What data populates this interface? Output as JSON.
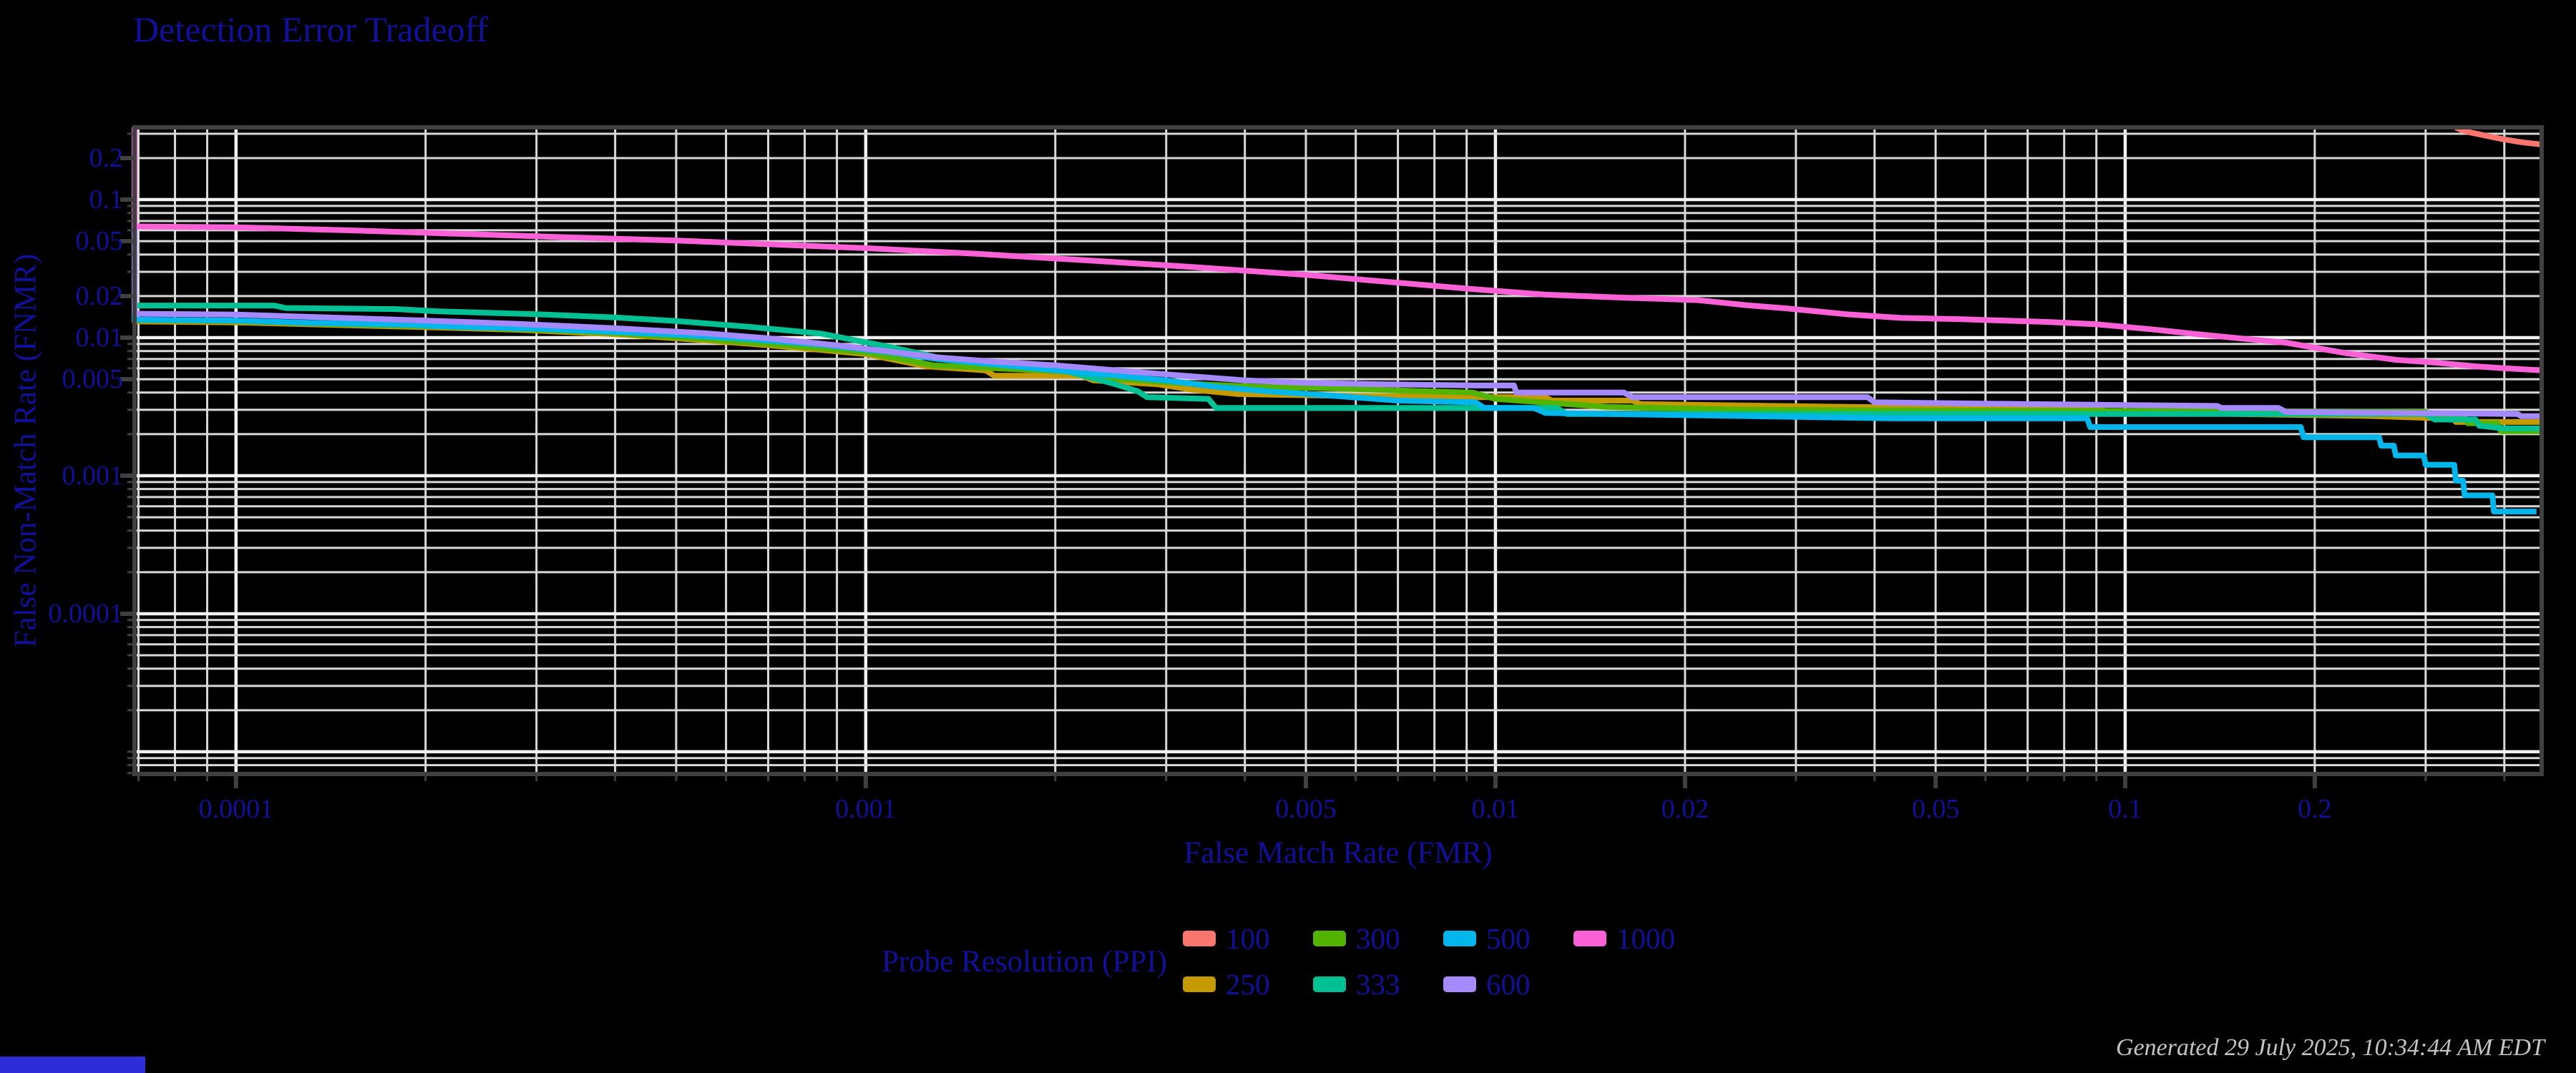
{
  "title": "Detection Error Tradeoff",
  "colors": {
    "background": "#000000",
    "text_navy": "#10109a",
    "grid_minor": "#d9d9d9",
    "grid_major": "#f2f2f2",
    "frame": "#404040",
    "timestamp_gray": "#c4c4c4",
    "bottom_bar_blue": "#2d2dda"
  },
  "axes": {
    "x_label": "False Match Rate (FMR)",
    "y_label": "False Non-Match Rate (FNMR)"
  },
  "legend": {
    "title": "Probe Resolution (PPI)",
    "items": [
      {
        "label": "100",
        "color": "#F8766D"
      },
      {
        "label": "250",
        "color": "#C49A00"
      },
      {
        "label": "300",
        "color": "#53B400"
      },
      {
        "label": "333",
        "color": "#00C094"
      },
      {
        "label": "500",
        "color": "#00B6EB"
      },
      {
        "label": "600",
        "color": "#A58AFF"
      },
      {
        "label": "1000",
        "color": "#FB61D7"
      }
    ]
  },
  "footer": {
    "generated": "Generated 29 July 2025, 10:34:44 AM EDT"
  },
  "chart_data": {
    "type": "line",
    "title": "Detection Error Tradeoff",
    "xlabel": "False Match Rate (FMR)",
    "ylabel": "False Non-Match Rate (FNMR)",
    "x_scale": "log",
    "y_scale": "log",
    "xlim": [
      6.9e-05,
      0.4585
    ],
    "ylim": [
      6.9e-06,
      0.334
    ],
    "grid": true,
    "legend_position": "bottom",
    "x_tick_values": [
      0.0001,
      0.001,
      0.005,
      0.01,
      0.02,
      0.05,
      0.1,
      0.2
    ],
    "x_tick_labels": [
      "0.0001",
      "0.001",
      "0.005",
      "0.01",
      "0.02",
      "0.05",
      "0.1",
      "0.2"
    ],
    "y_tick_values": [
      0.2,
      0.1,
      0.05,
      0.02,
      0.01,
      0.005,
      0.001,
      0.0001
    ],
    "y_tick_labels": [
      "0.2",
      "0.1",
      "0.05",
      "0.02",
      "0.01",
      "0.005",
      "0.001",
      "0.0001"
    ],
    "series": [
      {
        "name": "100",
        "color": "#F8766D",
        "points": [
          [
            0.335,
            0.333
          ],
          [
            0.345,
            0.315
          ],
          [
            0.355,
            0.305
          ],
          [
            0.368,
            0.295
          ],
          [
            0.38,
            0.286
          ],
          [
            0.395,
            0.276
          ],
          [
            0.41,
            0.268
          ],
          [
            0.425,
            0.261
          ],
          [
            0.44,
            0.256
          ],
          [
            0.4585,
            0.251
          ]
        ]
      },
      {
        "name": "250",
        "color": "#C49A00",
        "points": [
          [
            6.9e-05,
            0.333
          ],
          [
            6.9e-05,
            0.0131
          ],
          [
            0.0001,
            0.0129
          ],
          [
            0.00014,
            0.0124
          ],
          [
            0.0002,
            0.0119
          ],
          [
            0.00028,
            0.0114
          ],
          [
            0.0004,
            0.0106
          ],
          [
            0.00055,
            0.0096
          ],
          [
            0.00075,
            0.0086
          ],
          [
            0.001,
            0.0076
          ],
          [
            0.00125,
            0.0062
          ],
          [
            0.00155,
            0.0058
          ],
          [
            0.0016,
            0.0053
          ],
          [
            0.0022,
            0.0053
          ],
          [
            0.0023,
            0.0049
          ],
          [
            0.0029,
            0.0046
          ],
          [
            0.0033,
            0.0042
          ],
          [
            0.0039,
            0.0039
          ],
          [
            0.0055,
            0.0038
          ],
          [
            0.009,
            0.0037
          ],
          [
            0.012,
            0.0037
          ],
          [
            0.0123,
            0.0035
          ],
          [
            0.0165,
            0.0035
          ],
          [
            0.017,
            0.0033
          ],
          [
            0.028,
            0.0032
          ],
          [
            0.065,
            0.00305
          ],
          [
            0.089,
            0.00305
          ],
          [
            0.095,
            0.0029
          ],
          [
            0.15,
            0.0028
          ],
          [
            0.25,
            0.0027
          ],
          [
            0.32,
            0.0026
          ],
          [
            0.332,
            0.0026
          ],
          [
            0.335,
            0.00245
          ],
          [
            0.4585,
            0.00245
          ]
        ]
      },
      {
        "name": "300",
        "color": "#53B400",
        "points": [
          [
            6.9e-05,
            0.333
          ],
          [
            6.9e-05,
            0.0134
          ],
          [
            0.0001,
            0.0132
          ],
          [
            0.00014,
            0.0126
          ],
          [
            0.0002,
            0.0121
          ],
          [
            0.00028,
            0.0116
          ],
          [
            0.0004,
            0.0108
          ],
          [
            0.00055,
            0.0098
          ],
          [
            0.00075,
            0.0088
          ],
          [
            0.001,
            0.0078
          ],
          [
            0.00128,
            0.0063
          ],
          [
            0.0016,
            0.006
          ],
          [
            0.0022,
            0.0056
          ],
          [
            0.0024,
            0.0051
          ],
          [
            0.0029,
            0.0048
          ],
          [
            0.0034,
            0.0046
          ],
          [
            0.0042,
            0.0044
          ],
          [
            0.0055,
            0.0043
          ],
          [
            0.0075,
            0.0041
          ],
          [
            0.0092,
            0.004
          ],
          [
            0.01,
            0.0036
          ],
          [
            0.013,
            0.0033
          ],
          [
            0.015,
            0.00315
          ],
          [
            0.025,
            0.003
          ],
          [
            0.3,
            0.0029
          ],
          [
            0.31,
            0.0027
          ],
          [
            0.345,
            0.0027
          ],
          [
            0.35,
            0.0024
          ],
          [
            0.39,
            0.0024
          ],
          [
            0.395,
            0.0021
          ],
          [
            0.4585,
            0.0021
          ]
        ]
      },
      {
        "name": "333",
        "color": "#00C094",
        "points": [
          [
            6.9e-05,
            0.333
          ],
          [
            6.9e-05,
            0.0171
          ],
          [
            0.000115,
            0.0171
          ],
          [
            0.00012,
            0.0164
          ],
          [
            0.00018,
            0.0161
          ],
          [
            0.00021,
            0.0155
          ],
          [
            0.0003,
            0.0148
          ],
          [
            0.0004,
            0.014
          ],
          [
            0.0005,
            0.0132
          ],
          [
            0.00065,
            0.012
          ],
          [
            0.00085,
            0.0107
          ],
          [
            0.0011,
            0.0085
          ],
          [
            0.0013,
            0.0072
          ],
          [
            0.0016,
            0.0066
          ],
          [
            0.002,
            0.006
          ],
          [
            0.00245,
            0.0047
          ],
          [
            0.0027,
            0.0041
          ],
          [
            0.0028,
            0.0037
          ],
          [
            0.0035,
            0.0036
          ],
          [
            0.0036,
            0.0031
          ],
          [
            0.0125,
            0.0031
          ],
          [
            0.013,
            0.0028
          ],
          [
            0.3,
            0.0028
          ],
          [
            0.31,
            0.00255
          ],
          [
            0.36,
            0.00255
          ],
          [
            0.365,
            0.0023
          ],
          [
            0.4,
            0.0022
          ],
          [
            0.4585,
            0.0022
          ]
        ]
      },
      {
        "name": "500",
        "color": "#00B6EB",
        "points": [
          [
            6.9e-05,
            0.333
          ],
          [
            6.9e-05,
            0.0135
          ],
          [
            0.0001,
            0.0133
          ],
          [
            0.00013,
            0.0128
          ],
          [
            0.00019,
            0.0124
          ],
          [
            0.00021,
            0.0121
          ],
          [
            0.0003,
            0.0116
          ],
          [
            0.0004,
            0.011
          ],
          [
            0.0005,
            0.0105
          ],
          [
            0.00065,
            0.0098
          ],
          [
            0.00085,
            0.0089
          ],
          [
            0.0011,
            0.0078
          ],
          [
            0.0013,
            0.007
          ],
          [
            0.0016,
            0.0064
          ],
          [
            0.002,
            0.0058
          ],
          [
            0.0025,
            0.0053
          ],
          [
            0.003,
            0.0049
          ],
          [
            0.0036,
            0.0044
          ],
          [
            0.0043,
            0.0041
          ],
          [
            0.0055,
            0.0038
          ],
          [
            0.007,
            0.0035
          ],
          [
            0.0093,
            0.0034
          ],
          [
            0.0096,
            0.0031
          ],
          [
            0.0115,
            0.0031
          ],
          [
            0.012,
            0.00285
          ],
          [
            0.015,
            0.0028
          ],
          [
            0.043,
            0.0026
          ],
          [
            0.087,
            0.0026
          ],
          [
            0.088,
            0.00225
          ],
          [
            0.19,
            0.00225
          ],
          [
            0.192,
            0.0019
          ],
          [
            0.253,
            0.0019
          ],
          [
            0.255,
            0.00165
          ],
          [
            0.267,
            0.00165
          ],
          [
            0.269,
            0.0014
          ],
          [
            0.298,
            0.0014
          ],
          [
            0.3,
            0.0012
          ],
          [
            0.333,
            0.0012
          ],
          [
            0.335,
            0.00092
          ],
          [
            0.344,
            0.00092
          ],
          [
            0.346,
            0.00072
          ],
          [
            0.383,
            0.00072
          ],
          [
            0.385,
            0.00055
          ],
          [
            0.45,
            0.00055
          ]
        ]
      },
      {
        "name": "600",
        "color": "#A58AFF",
        "points": [
          [
            6.9e-05,
            0.333
          ],
          [
            6.9e-05,
            0.0149
          ],
          [
            0.0001,
            0.0147
          ],
          [
            0.00014,
            0.014
          ],
          [
            0.0002,
            0.0133
          ],
          [
            0.00028,
            0.0126
          ],
          [
            0.0004,
            0.0117
          ],
          [
            0.00055,
            0.0108
          ],
          [
            0.0007,
            0.0099
          ],
          [
            0.0009,
            0.0088
          ],
          [
            0.0011,
            0.0079
          ],
          [
            0.0013,
            0.0072
          ],
          [
            0.0016,
            0.0067
          ],
          [
            0.002,
            0.0063
          ],
          [
            0.0026,
            0.0057
          ],
          [
            0.0032,
            0.0053
          ],
          [
            0.004,
            0.0049
          ],
          [
            0.005,
            0.0047
          ],
          [
            0.0065,
            0.0046
          ],
          [
            0.0092,
            0.0045
          ],
          [
            0.0107,
            0.0045
          ],
          [
            0.0108,
            0.004
          ],
          [
            0.016,
            0.004
          ],
          [
            0.0165,
            0.0037
          ],
          [
            0.039,
            0.0037
          ],
          [
            0.04,
            0.0034
          ],
          [
            0.07,
            0.0033
          ],
          [
            0.14,
            0.0032
          ],
          [
            0.142,
            0.0031
          ],
          [
            0.175,
            0.0031
          ],
          [
            0.18,
            0.0029
          ],
          [
            0.42,
            0.0028
          ],
          [
            0.425,
            0.0027
          ],
          [
            0.4585,
            0.0027
          ]
        ]
      },
      {
        "name": "1000",
        "color": "#FB61D7",
        "points": [
          [
            6.9e-05,
            0.333
          ],
          [
            6.9e-05,
            0.064
          ],
          [
            0.0001,
            0.063
          ],
          [
            0.00015,
            0.06
          ],
          [
            0.0002,
            0.0575
          ],
          [
            0.00033,
            0.0535
          ],
          [
            0.0005,
            0.0505
          ],
          [
            0.0007,
            0.0475
          ],
          [
            0.001,
            0.0445
          ],
          [
            0.0015,
            0.0405
          ],
          [
            0.0022,
            0.0365
          ],
          [
            0.0033,
            0.0325
          ],
          [
            0.005,
            0.0285
          ],
          [
            0.007,
            0.025
          ],
          [
            0.0092,
            0.0225
          ],
          [
            0.012,
            0.0205
          ],
          [
            0.016,
            0.0195
          ],
          [
            0.021,
            0.0187
          ],
          [
            0.025,
            0.0172
          ],
          [
            0.029,
            0.0163
          ],
          [
            0.036,
            0.0148
          ],
          [
            0.044,
            0.0139
          ],
          [
            0.055,
            0.0136
          ],
          [
            0.075,
            0.013
          ],
          [
            0.09,
            0.0125
          ],
          [
            0.11,
            0.0115
          ],
          [
            0.13,
            0.0106
          ],
          [
            0.155,
            0.0098
          ],
          [
            0.18,
            0.0092
          ],
          [
            0.225,
            0.0077
          ],
          [
            0.27,
            0.0069
          ],
          [
            0.31,
            0.0066
          ],
          [
            0.36,
            0.0062
          ],
          [
            0.4,
            0.006
          ],
          [
            0.4585,
            0.0058
          ]
        ]
      }
    ]
  }
}
